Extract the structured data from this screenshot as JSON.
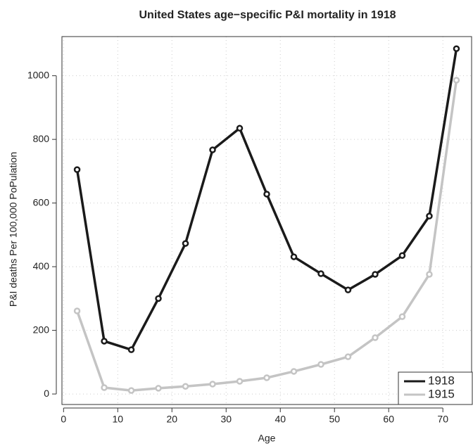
{
  "chart_data": {
    "type": "line",
    "title": "United States age−specific P&I mortality in 1918",
    "xlabel": "Age",
    "ylabel": "P&I deaths Per 100,000 PoPulation",
    "x": [
      2.5,
      7.5,
      12.5,
      17.5,
      22.5,
      27.5,
      32.5,
      37.5,
      42.5,
      47.5,
      52.5,
      57.5,
      62.5,
      67.5,
      72.5
    ],
    "series": [
      {
        "name": "1918",
        "color": "#1a1a1a",
        "values": [
          705,
          166,
          139,
          300,
          473,
          767,
          835,
          628,
          431,
          378,
          327,
          376,
          435,
          559,
          1085
        ]
      },
      {
        "name": "1915",
        "color": "#c4c4c4",
        "values": [
          261,
          20,
          11,
          18,
          24,
          31,
          40,
          51,
          71,
          93,
          117,
          177,
          243,
          376,
          986
        ]
      }
    ],
    "xlim": [
      -0.3,
      75.3
    ],
    "xticks": [
      0,
      10,
      20,
      30,
      40,
      50,
      60,
      70
    ],
    "ylim": [
      -33,
      1123
    ],
    "yticks": [
      0,
      200,
      400,
      600,
      800,
      1000
    ],
    "grid": true,
    "legend": "bottom-right"
  }
}
